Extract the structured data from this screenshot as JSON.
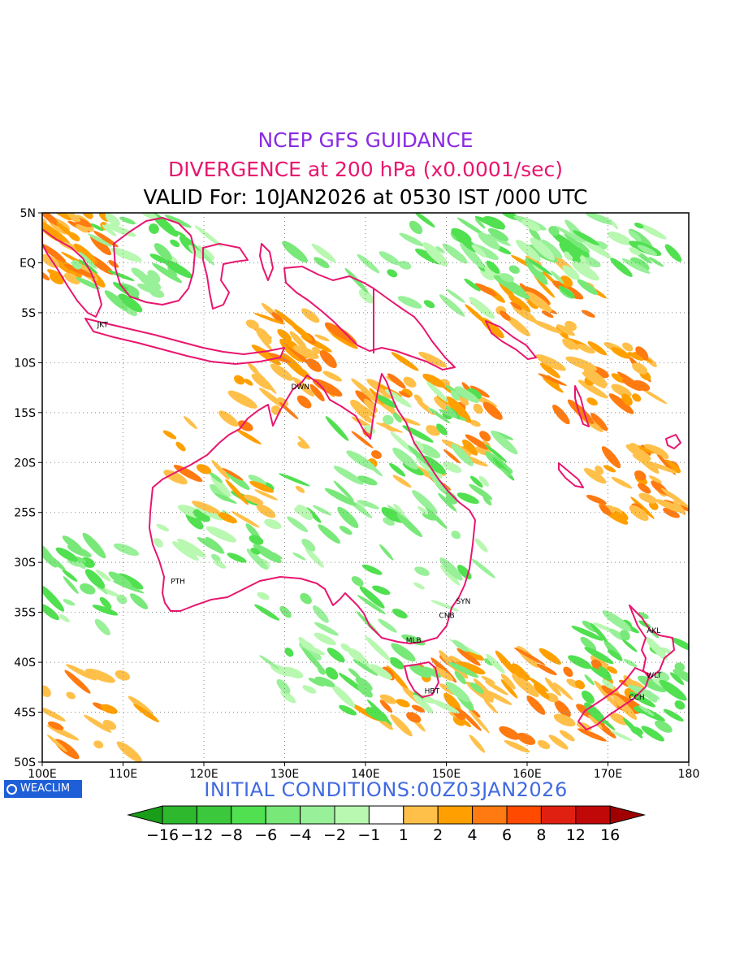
{
  "header": {
    "line1": "NCEP GFS GUIDANCE",
    "line2": "DIVERGENCE at 200 hPa (x0.0001/sec)",
    "line3": "VALID For: 10JAN2026 at 0530 IST /000 UTC"
  },
  "map": {
    "region": "Australia / Maritime Continent / New Zealand",
    "lon_range": [
      100,
      180
    ],
    "lat_range": [
      -50,
      5
    ],
    "x_ticks": [
      "100E",
      "110E",
      "120E",
      "130E",
      "140E",
      "150E",
      "160E",
      "170E",
      "180"
    ],
    "y_ticks": [
      "5N",
      "EQ",
      "5S",
      "10S",
      "15S",
      "20S",
      "25S",
      "30S",
      "35S",
      "40S",
      "45S",
      "50S"
    ],
    "coastline_color": "#e8166f",
    "grid": "dotted",
    "cities": [
      {
        "code": "JKT",
        "lon": 106.8,
        "lat": -6.2
      },
      {
        "code": "DWN",
        "lon": 130.8,
        "lat": -12.4
      },
      {
        "code": "PTH",
        "lon": 115.9,
        "lat": -31.9
      },
      {
        "code": "SYN",
        "lon": 151.2,
        "lat": -33.9
      },
      {
        "code": "CNB",
        "lon": 149.1,
        "lat": -35.3
      },
      {
        "code": "MLB",
        "lon": 145.0,
        "lat": -37.8
      },
      {
        "code": "HBT",
        "lon": 147.3,
        "lat": -42.9
      },
      {
        "code": "AKL",
        "lon": 174.8,
        "lat": -36.8
      },
      {
        "code": "WLT",
        "lon": 174.8,
        "lat": -41.3
      },
      {
        "code": "CCH",
        "lon": 172.6,
        "lat": -43.5
      }
    ]
  },
  "footer": {
    "logo_text": "WEACLIM",
    "initial_conditions": "INITIAL CONDITIONS:00Z03JAN2026"
  },
  "colorbar": {
    "labels": [
      "−16",
      "−12",
      "−8",
      "−6",
      "−4",
      "−2",
      "−1",
      "1",
      "2",
      "4",
      "6",
      "8",
      "12",
      "16"
    ],
    "colors": [
      "#1a9e1a",
      "#2eb82e",
      "#3cc83c",
      "#50e050",
      "#78e878",
      "#98f098",
      "#b8f8b0",
      "#ffffff",
      "#ffc04a",
      "#ffa000",
      "#ff7a10",
      "#ff4a00",
      "#e02010",
      "#c00808",
      "#a00000"
    ]
  }
}
